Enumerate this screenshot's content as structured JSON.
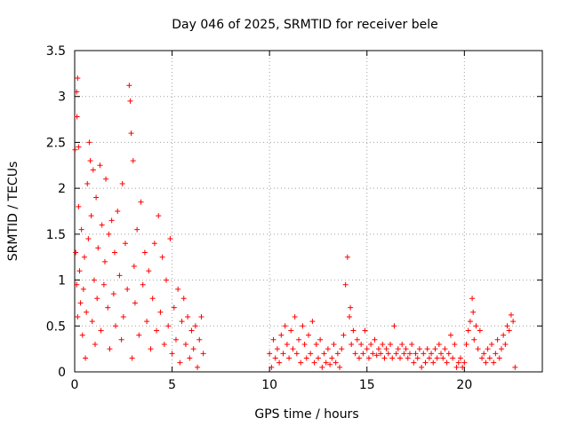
{
  "chart_data": {
    "type": "scatter",
    "title": "Day 046 of 2025, SRMTID for receiver bele",
    "xlabel": "GPS time / hours",
    "ylabel": "SRMTID / TECUs",
    "xlim": [
      0,
      24
    ],
    "ylim": [
      0,
      3.5
    ],
    "xticks": [
      0,
      5,
      10,
      15,
      20
    ],
    "yticks": [
      0,
      0.5,
      1,
      1.5,
      2,
      2.5,
      3,
      3.5
    ],
    "ytick_labels": [
      "0",
      "0.5",
      "1",
      "1.5",
      "2",
      "2.5",
      "3",
      "3.5"
    ],
    "grid": true,
    "marker": "+",
    "series_color": "#ff0000",
    "series": [
      {
        "name": "SRMTID",
        "points": [
          [
            0.02,
            2.42
          ],
          [
            0.1,
            3.05
          ],
          [
            0.15,
            3.2
          ],
          [
            0.12,
            2.78
          ],
          [
            0.2,
            2.45
          ],
          [
            0.05,
            1.3
          ],
          [
            0.1,
            0.95
          ],
          [
            0.15,
            0.6
          ],
          [
            0.2,
            1.8
          ],
          [
            0.25,
            1.1
          ],
          [
            0.3,
            0.75
          ],
          [
            0.35,
            1.55
          ],
          [
            0.4,
            0.4
          ],
          [
            0.45,
            0.9
          ],
          [
            0.5,
            1.25
          ],
          [
            0.55,
            0.15
          ],
          [
            0.6,
            0.65
          ],
          [
            0.65,
            2.05
          ],
          [
            0.7,
            1.45
          ],
          [
            0.75,
            2.5
          ],
          [
            0.8,
            2.3
          ],
          [
            0.85,
            1.7
          ],
          [
            0.9,
            0.55
          ],
          [
            0.95,
            2.2
          ],
          [
            1.0,
            1.0
          ],
          [
            1.05,
            0.3
          ],
          [
            1.1,
            1.9
          ],
          [
            1.15,
            0.8
          ],
          [
            1.2,
            1.35
          ],
          [
            1.3,
            2.25
          ],
          [
            1.35,
            0.45
          ],
          [
            1.4,
            1.6
          ],
          [
            1.5,
            0.95
          ],
          [
            1.55,
            1.2
          ],
          [
            1.6,
            2.1
          ],
          [
            1.7,
            0.7
          ],
          [
            1.75,
            1.5
          ],
          [
            1.8,
            0.25
          ],
          [
            1.9,
            1.65
          ],
          [
            2.0,
            0.85
          ],
          [
            2.05,
            1.3
          ],
          [
            2.1,
            0.5
          ],
          [
            2.2,
            1.75
          ],
          [
            2.3,
            1.05
          ],
          [
            2.4,
            0.35
          ],
          [
            2.45,
            2.05
          ],
          [
            2.5,
            0.6
          ],
          [
            2.6,
            1.4
          ],
          [
            2.7,
            0.9
          ],
          [
            2.8,
            3.12
          ],
          [
            2.85,
            2.95
          ],
          [
            2.9,
            2.6
          ],
          [
            2.95,
            0.15
          ],
          [
            3.0,
            2.3
          ],
          [
            3.05,
            1.15
          ],
          [
            3.1,
            0.75
          ],
          [
            3.2,
            1.55
          ],
          [
            3.3,
            0.4
          ],
          [
            3.4,
            1.85
          ],
          [
            3.5,
            0.95
          ],
          [
            3.6,
            1.3
          ],
          [
            3.7,
            0.55
          ],
          [
            3.8,
            1.1
          ],
          [
            3.9,
            0.25
          ],
          [
            4.0,
            0.8
          ],
          [
            4.1,
            1.4
          ],
          [
            4.2,
            0.45
          ],
          [
            4.3,
            1.7
          ],
          [
            4.4,
            0.65
          ],
          [
            4.5,
            1.25
          ],
          [
            4.6,
            0.3
          ],
          [
            4.7,
            1.0
          ],
          [
            4.8,
            0.5
          ],
          [
            4.9,
            1.45
          ],
          [
            5.0,
            0.2
          ],
          [
            5.1,
            0.7
          ],
          [
            5.2,
            0.35
          ],
          [
            5.3,
            0.9
          ],
          [
            5.4,
            0.1
          ],
          [
            5.5,
            0.55
          ],
          [
            5.6,
            0.8
          ],
          [
            5.7,
            0.3
          ],
          [
            5.8,
            0.6
          ],
          [
            5.9,
            0.15
          ],
          [
            6.0,
            0.45
          ],
          [
            6.1,
            0.25
          ],
          [
            6.2,
            0.5
          ],
          [
            6.3,
            0.05
          ],
          [
            6.4,
            0.35
          ],
          [
            6.5,
            0.6
          ],
          [
            6.6,
            0.2
          ],
          [
            10.0,
            0.2
          ],
          [
            10.1,
            0.05
          ],
          [
            10.2,
            0.35
          ],
          [
            10.3,
            0.15
          ],
          [
            10.4,
            0.25
          ],
          [
            10.5,
            0.1
          ],
          [
            10.6,
            0.4
          ],
          [
            10.7,
            0.2
          ],
          [
            10.8,
            0.5
          ],
          [
            10.9,
            0.3
          ],
          [
            11.0,
            0.15
          ],
          [
            11.1,
            0.45
          ],
          [
            11.2,
            0.25
          ],
          [
            11.3,
            0.6
          ],
          [
            11.4,
            0.2
          ],
          [
            11.5,
            0.35
          ],
          [
            11.6,
            0.1
          ],
          [
            11.7,
            0.5
          ],
          [
            11.8,
            0.3
          ],
          [
            11.9,
            0.15
          ],
          [
            12.0,
            0.4
          ],
          [
            12.1,
            0.2
          ],
          [
            12.2,
            0.55
          ],
          [
            12.3,
            0.1
          ],
          [
            12.4,
            0.3
          ],
          [
            12.5,
            0.15
          ],
          [
            12.6,
            0.35
          ],
          [
            12.7,
            0.05
          ],
          [
            12.8,
            0.2
          ],
          [
            12.9,
            0.1
          ],
          [
            13.0,
            0.25
          ],
          [
            13.1,
            0.08
          ],
          [
            13.2,
            0.15
          ],
          [
            13.3,
            0.3
          ],
          [
            13.4,
            0.1
          ],
          [
            13.5,
            0.2
          ],
          [
            13.6,
            0.05
          ],
          [
            13.7,
            0.25
          ],
          [
            13.8,
            0.4
          ],
          [
            13.9,
            0.95
          ],
          [
            14.0,
            1.25
          ],
          [
            14.1,
            0.6
          ],
          [
            14.15,
            0.7
          ],
          [
            14.2,
            0.3
          ],
          [
            14.3,
            0.45
          ],
          [
            14.4,
            0.2
          ],
          [
            14.5,
            0.35
          ],
          [
            14.6,
            0.15
          ],
          [
            14.7,
            0.3
          ],
          [
            14.8,
            0.2
          ],
          [
            14.9,
            0.45
          ],
          [
            15.0,
            0.25
          ],
          [
            15.1,
            0.15
          ],
          [
            15.2,
            0.3
          ],
          [
            15.3,
            0.2
          ],
          [
            15.4,
            0.35
          ],
          [
            15.5,
            0.18
          ],
          [
            15.6,
            0.25
          ],
          [
            15.7,
            0.2
          ],
          [
            15.8,
            0.3
          ],
          [
            15.9,
            0.15
          ],
          [
            16.0,
            0.25
          ],
          [
            16.1,
            0.2
          ],
          [
            16.2,
            0.3
          ],
          [
            16.3,
            0.15
          ],
          [
            16.4,
            0.5
          ],
          [
            16.5,
            0.2
          ],
          [
            16.6,
            0.25
          ],
          [
            16.7,
            0.15
          ],
          [
            16.8,
            0.3
          ],
          [
            16.9,
            0.2
          ],
          [
            17.0,
            0.25
          ],
          [
            17.1,
            0.15
          ],
          [
            17.2,
            0.2
          ],
          [
            17.3,
            0.3
          ],
          [
            17.4,
            0.1
          ],
          [
            17.5,
            0.2
          ],
          [
            17.6,
            0.15
          ],
          [
            17.7,
            0.25
          ],
          [
            17.8,
            0.05
          ],
          [
            17.9,
            0.2
          ],
          [
            18.0,
            0.1
          ],
          [
            18.1,
            0.25
          ],
          [
            18.2,
            0.15
          ],
          [
            18.3,
            0.2
          ],
          [
            18.4,
            0.1
          ],
          [
            18.5,
            0.25
          ],
          [
            18.6,
            0.15
          ],
          [
            18.7,
            0.3
          ],
          [
            18.8,
            0.2
          ],
          [
            18.9,
            0.15
          ],
          [
            19.0,
            0.25
          ],
          [
            19.1,
            0.1
          ],
          [
            19.2,
            0.2
          ],
          [
            19.3,
            0.4
          ],
          [
            19.4,
            0.15
          ],
          [
            19.5,
            0.3
          ],
          [
            19.6,
            0.05
          ],
          [
            19.7,
            0.1
          ],
          [
            19.8,
            0.15
          ],
          [
            19.9,
            0.05
          ],
          [
            20.0,
            0.1
          ],
          [
            20.1,
            0.3
          ],
          [
            20.2,
            0.45
          ],
          [
            20.3,
            0.55
          ],
          [
            20.4,
            0.8
          ],
          [
            20.45,
            0.65
          ],
          [
            20.5,
            0.35
          ],
          [
            20.6,
            0.5
          ],
          [
            20.7,
            0.25
          ],
          [
            20.8,
            0.45
          ],
          [
            20.9,
            0.15
          ],
          [
            21.0,
            0.2
          ],
          [
            21.1,
            0.1
          ],
          [
            21.2,
            0.25
          ],
          [
            21.3,
            0.15
          ],
          [
            21.4,
            0.3
          ],
          [
            21.5,
            0.1
          ],
          [
            21.6,
            0.2
          ],
          [
            21.7,
            0.35
          ],
          [
            21.8,
            0.15
          ],
          [
            21.9,
            0.25
          ],
          [
            22.0,
            0.4
          ],
          [
            22.1,
            0.3
          ],
          [
            22.2,
            0.5
          ],
          [
            22.3,
            0.45
          ],
          [
            22.4,
            0.62
          ],
          [
            22.5,
            0.55
          ],
          [
            22.6,
            0.05
          ]
        ]
      }
    ]
  }
}
